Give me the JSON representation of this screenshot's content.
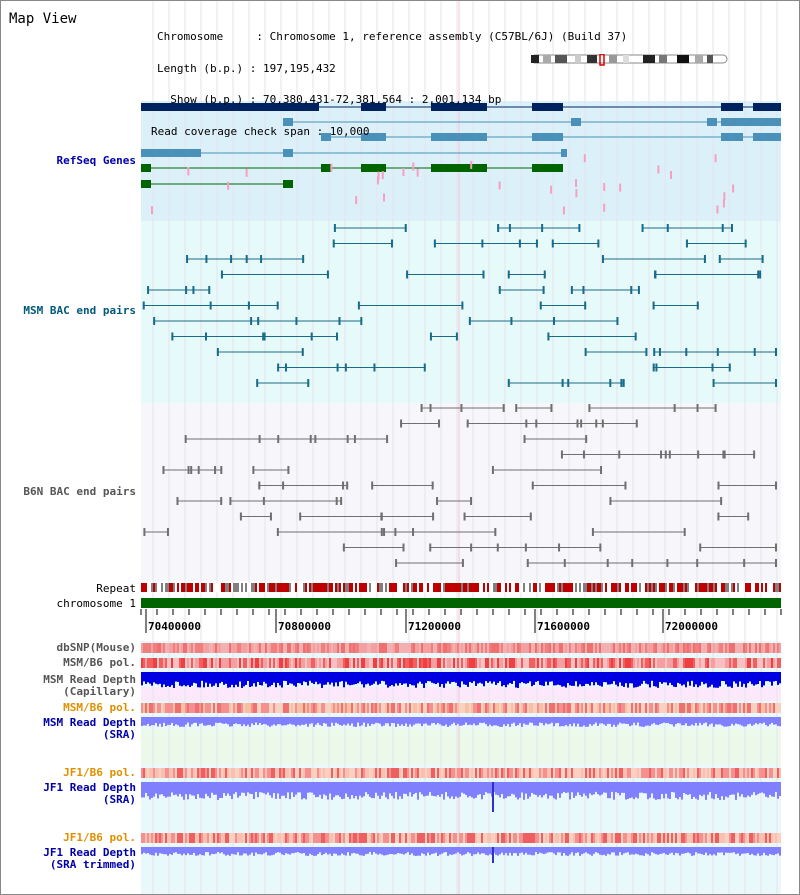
{
  "title": "Map View",
  "info": {
    "chromosome": "Chromosome     : Chromosome 1, reference assembly (C57BL/6J) (Build 37)",
    "length": "Length (b.p.) : 197,195,432",
    "show": "  Show (b.p.) : 70,380,431-72,381,564 : 2,001,134 bp",
    "coverage": "Read coverage check span : 10,000"
  },
  "tracks": {
    "refseq": "RefSeq Genes",
    "msm_bac": "MSM BAC end pairs",
    "b6n_bac": "B6N BAC end pairs",
    "repeat": "Repeat",
    "chromosome": "chromosome 1",
    "dbsnp": "dbSNP(Mouse)",
    "msm_b6_pol": "MSM/B6 pol.",
    "msm_depth_cap": "MSM Read Depth\n(Capillary)",
    "msm_b6_pol2": "MSM/B6 pol.",
    "msm_depth_sra": "MSM Read Depth\n(SRA)",
    "jf1_b6_pol": "JF1/B6 pol.",
    "jf1_depth_sra": "JF1 Read Depth\n(SRA)",
    "jf1_b6_pol2": "JF1/B6 pol.",
    "jf1_depth_trim": "JF1 Read Depth\n(SRA trimmed)"
  },
  "axis": {
    "ticks": [
      "70400000",
      "70800000",
      "71200000",
      "71600000",
      "72000000"
    ]
  },
  "colors": {
    "refseq_bg": "#dcf0fa",
    "msm_bac_bg": "#e6fafa",
    "b6n_bac_bg": "#f6f6fb",
    "chromosome_bar": "#006400",
    "label_blue": "#0000aa",
    "label_teal": "#005a7a",
    "label_orange": "#e09000",
    "gene_navy": "#00235f",
    "gene_steel": "#4a90b8",
    "gene_green": "#006400",
    "bac_teal": "#1a6a8a",
    "bac_grey": "#707070",
    "depth_blue": "#0000e0",
    "depth_lav": "#8080ff"
  }
}
